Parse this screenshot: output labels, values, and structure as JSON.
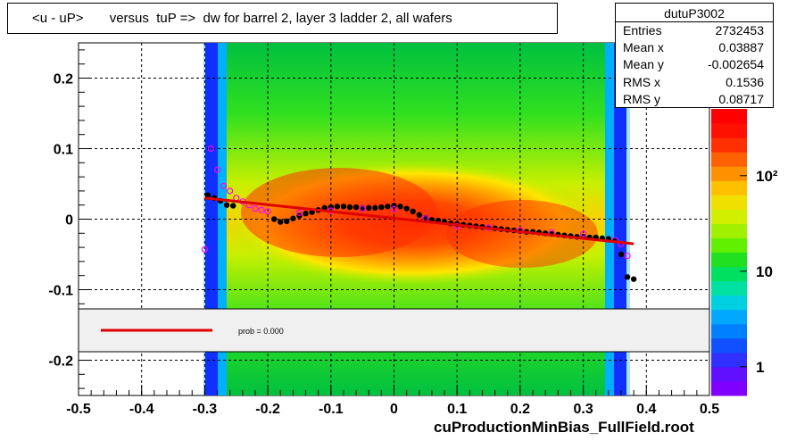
{
  "title": "<u - uP>       versus  tuP =>  dw for barrel 2, layer 3 ladder 2, all wafers",
  "footer": "cuProductionMinBias_FullField.root",
  "stats": {
    "name": "dutuP3002",
    "rows": [
      {
        "label": "Entries",
        "value": "2732453"
      },
      {
        "label": "Mean x",
        "value": "0.03887"
      },
      {
        "label": "Mean y",
        "value": "-0.002654"
      },
      {
        "label": "RMS x",
        "value": "0.1536"
      },
      {
        "label": "RMS y",
        "value": "0.08717"
      }
    ]
  },
  "legend": {
    "label": "prob = 0.000",
    "line_color": "#e00000"
  },
  "colorbar": {
    "ticks": [
      {
        "value": 1,
        "label": "1"
      },
      {
        "value": 10,
        "label": "10"
      },
      {
        "value": 100,
        "label": "10²"
      }
    ],
    "range": [
      0.5,
      500
    ]
  },
  "chart_data": {
    "type": "heatmap",
    "title": "<u - uP>       versus  tuP =>  dw for barrel 2, layer 3 ladder 2, all wafers",
    "xlabel": "",
    "ylabel": "",
    "xlim": [
      -0.5,
      0.5
    ],
    "ylim": [
      -0.25,
      0.25
    ],
    "xticks": [
      -0.5,
      -0.4,
      -0.3,
      -0.2,
      -0.1,
      0,
      0.1,
      0.2,
      0.3,
      0.4,
      0.5
    ],
    "xtick_labels": [
      "-0.5",
      "-0.4",
      "-0.3",
      "-0.2",
      "-0.1",
      "0",
      "0.1",
      "0.2",
      "0.3",
      "0.4",
      "0.5"
    ],
    "yticks": [
      -0.2,
      -0.1,
      0,
      0.1,
      0.2
    ],
    "ytick_labels": [
      "-0.2",
      "-0.1",
      "0",
      "0.1",
      "0.2"
    ],
    "grid": true,
    "z_scale": "log",
    "series": [
      {
        "type": "scatter",
        "marker": "black-dot",
        "x": [
          -0.295,
          -0.285,
          -0.275,
          -0.265,
          -0.255,
          -0.19,
          -0.18,
          -0.17,
          -0.16,
          -0.15,
          -0.14,
          -0.13,
          -0.12,
          -0.11,
          -0.1,
          -0.09,
          -0.08,
          -0.07,
          -0.06,
          -0.05,
          -0.04,
          -0.03,
          -0.02,
          -0.01,
          0,
          0.01,
          0.02,
          0.03,
          0.04,
          0.05,
          0.06,
          0.07,
          0.08,
          0.09,
          0.1,
          0.11,
          0.12,
          0.13,
          0.14,
          0.15,
          0.16,
          0.17,
          0.18,
          0.19,
          0.2,
          0.21,
          0.22,
          0.23,
          0.24,
          0.25,
          0.26,
          0.27,
          0.28,
          0.29,
          0.3,
          0.31,
          0.32,
          0.33,
          0.34,
          0.35,
          0.36,
          0.37,
          0.38
        ],
        "y": [
          0.034,
          0.03,
          0.026,
          0.02,
          0.019,
          0.0,
          -0.004,
          -0.003,
          0.001,
          0.005,
          0.008,
          0.01,
          0.013,
          0.016,
          0.017,
          0.018,
          0.018,
          0.017,
          0.017,
          0.016,
          0.016,
          0.016,
          0.017,
          0.018,
          0.019,
          0.018,
          0.015,
          0.011,
          0.006,
          0.002,
          -0.001,
          -0.002,
          -0.004,
          -0.006,
          -0.007,
          -0.008,
          -0.009,
          -0.01,
          -0.011,
          -0.012,
          -0.013,
          -0.014,
          -0.015,
          -0.016,
          -0.017,
          -0.018,
          -0.018,
          -0.019,
          -0.02,
          -0.021,
          -0.022,
          -0.023,
          -0.024,
          -0.025,
          -0.025,
          -0.026,
          -0.026,
          -0.027,
          -0.028,
          -0.03,
          -0.05,
          -0.082,
          -0.085
        ]
      },
      {
        "type": "scatter",
        "marker": "magenta-open",
        "x": [
          -0.3,
          -0.29,
          -0.28,
          -0.27,
          -0.26,
          -0.25,
          -0.24,
          -0.23,
          -0.22,
          -0.21,
          -0.2,
          -0.15,
          -0.1,
          -0.05,
          0,
          0.05,
          0.1,
          0.15,
          0.2,
          0.25,
          0.3,
          0.35,
          0.36,
          0.37
        ],
        "y": [
          -0.043,
          0.1,
          0.07,
          0.047,
          0.04,
          0.03,
          0.025,
          0.02,
          0.015,
          0.013,
          0.011,
          0.009,
          0.012,
          0.015,
          0.014,
          0.001,
          -0.01,
          -0.012,
          -0.016,
          -0.019,
          -0.021,
          -0.03,
          -0.035,
          -0.052
        ]
      },
      {
        "type": "line",
        "name": "fit",
        "x": [
          -0.3,
          0.38
        ],
        "y": [
          0.03,
          -0.035
        ]
      }
    ]
  }
}
